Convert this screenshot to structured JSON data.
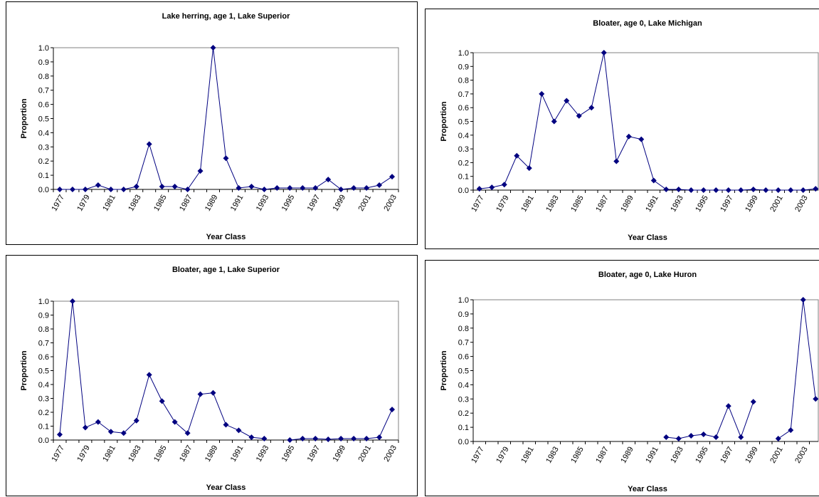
{
  "chart_data": [
    {
      "type": "line",
      "title": "Lake herring, age 1, Lake Superior",
      "xlabel": "Year Class",
      "ylabel": "Proportion",
      "categories": [
        "1977",
        null,
        "1979",
        null,
        "1981",
        null,
        "1983",
        null,
        "1985",
        null,
        "1987",
        null,
        "1989",
        null,
        "1991",
        null,
        "1993",
        null,
        "1995",
        null,
        "1997",
        null,
        "1999",
        null,
        "2001",
        null,
        "2003"
      ],
      "values": [
        0,
        0,
        0,
        0.03,
        0,
        0,
        0.02,
        0.32,
        0.02,
        0.02,
        0,
        0.13,
        1.0,
        0.22,
        0.01,
        0.02,
        0,
        0.01,
        0.01,
        0.01,
        0.01,
        0.07,
        0,
        0.01,
        0.01,
        0.03,
        0.09
      ],
      "color": "#000080",
      "ylim": [
        0,
        1
      ],
      "yticks": [
        {
          "value": 0,
          "label": "0.0"
        },
        0.1,
        0.2,
        0.3,
        0.4,
        0.5,
        0.6,
        0.7,
        0.8,
        0.9,
        {
          "value": 1,
          "label": "1.0"
        }
      ]
    },
    {
      "type": "line",
      "title": "Bloater, age 0, Lake Michigan",
      "xlabel": "Year Class",
      "ylabel": "Proportion",
      "categories": [
        "1977",
        null,
        "1979",
        null,
        "1981",
        null,
        "1983",
        null,
        "1985",
        null,
        "1987",
        null,
        "1989",
        null,
        "1991",
        null,
        "1993",
        null,
        "1995",
        null,
        "1997",
        null,
        "1999",
        null,
        "2001",
        null,
        "2003",
        null
      ],
      "values": [
        0.01,
        0.02,
        0.04,
        0.25,
        0.16,
        0.7,
        0.5,
        0.65,
        0.54,
        0.6,
        1.0,
        0.21,
        0.39,
        0.37,
        0.07,
        0.005,
        0.005,
        0,
        0,
        0,
        0,
        0,
        0.005,
        0,
        0,
        0,
        0,
        0.01
      ],
      "color": "#000080",
      "ylim": [
        0,
        1
      ],
      "yticks": [
        {
          "value": 0,
          "label": "0.0"
        },
        0.1,
        0.2,
        0.3,
        0.4,
        0.5,
        0.6,
        0.7,
        0.8,
        0.9,
        {
          "value": 1,
          "label": "1.0"
        }
      ]
    },
    {
      "type": "line",
      "title": "Bloater, age 1, Lake Superior",
      "xlabel": "Year Class",
      "ylabel": "Proportion",
      "categories": [
        "1977",
        null,
        "1979",
        null,
        "1981",
        null,
        "1983",
        null,
        "1985",
        null,
        "1987",
        null,
        "1989",
        null,
        "1991",
        null,
        "1993",
        null,
        "1995",
        null,
        "1997",
        null,
        "1999",
        null,
        "2001",
        null,
        "2003"
      ],
      "values": [
        0.04,
        1.0,
        0.09,
        0.13,
        0.06,
        0.05,
        0.14,
        0.47,
        0.28,
        0.13,
        0.05,
        0.33,
        0.34,
        0.11,
        0.07,
        0.02,
        0.01,
        null,
        0,
        0.01,
        0.01,
        0.005,
        0.01,
        0.01,
        0.01,
        0.02,
        0.22
      ],
      "color": "#000080",
      "ylim": [
        0,
        1
      ],
      "yticks": [
        {
          "value": 0,
          "label": "0.0"
        },
        0.1,
        0.2,
        0.3,
        0.4,
        0.5,
        0.6,
        0.7,
        0.8,
        0.9,
        {
          "value": 1,
          "label": "1.0"
        }
      ]
    },
    {
      "type": "line",
      "title": "Bloater, age 0, Lake Huron",
      "xlabel": "Year Class",
      "ylabel": "Proportion",
      "categories": [
        "1977",
        null,
        "1979",
        null,
        "1981",
        null,
        "1983",
        null,
        "1985",
        null,
        "1987",
        null,
        "1989",
        null,
        "1991",
        null,
        "1993",
        null,
        "1995",
        null,
        "1997",
        null,
        "1999",
        null,
        "2001",
        null,
        "2003",
        null
      ],
      "values": [
        null,
        null,
        null,
        null,
        null,
        null,
        null,
        null,
        null,
        null,
        null,
        null,
        null,
        null,
        null,
        0.03,
        0.02,
        0.04,
        0.05,
        0.03,
        0.25,
        0.03,
        0.28,
        null,
        0.02,
        0.08,
        1.0,
        0.3
      ],
      "color": "#000080",
      "ylim": [
        0,
        1
      ],
      "yticks": [
        {
          "value": 0,
          "label": "0.0"
        },
        0.1,
        0.2,
        0.3,
        0.4,
        0.5,
        0.6,
        0.7,
        0.8,
        0.9,
        {
          "value": 1,
          "label": "1.0"
        }
      ]
    }
  ]
}
